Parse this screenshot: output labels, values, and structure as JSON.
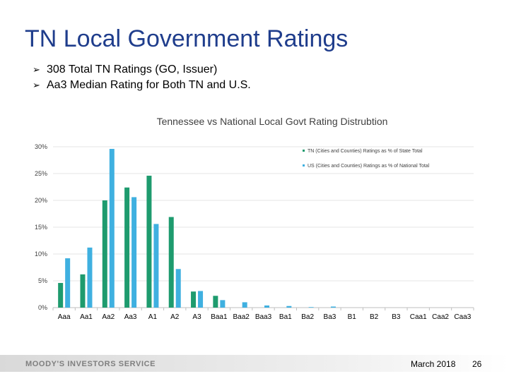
{
  "slide": {
    "title": "TN Local Government Ratings",
    "bullets": [
      "308 Total TN Ratings (GO, Issuer)",
      "Aa3 Median Rating for Both TN and U.S."
    ],
    "bullet_glyph": "➢"
  },
  "chart_data": {
    "type": "bar",
    "title": "Tennessee vs National Local Govt Rating Distrubtion",
    "categories": [
      "Aaa",
      "Aa1",
      "Aa2",
      "Aa3",
      "A1",
      "A2",
      "A3",
      "Baa1",
      "Baa2",
      "Baa3",
      "Ba1",
      "Ba2",
      "Ba3",
      "B1",
      "B2",
      "B3",
      "Caa1",
      "Caa2",
      "Caa3"
    ],
    "series": [
      {
        "name": "TN (Cities and Counties) Ratings as % of State Total",
        "color": "#1e9b6e",
        "values": [
          4.6,
          6.2,
          20.0,
          22.4,
          24.6,
          16.9,
          3.0,
          2.2,
          0.0,
          0.0,
          0.0,
          0.0,
          0.0,
          0.0,
          0.0,
          0.0,
          0.0,
          0.0,
          0.0
        ]
      },
      {
        "name": "US (Cities and Counties) Ratings as % of National Total",
        "color": "#3fb0e0",
        "values": [
          9.2,
          11.2,
          29.6,
          20.6,
          15.6,
          7.2,
          3.1,
          1.4,
          1.0,
          0.4,
          0.3,
          0.1,
          0.2,
          0.0,
          0.0,
          0.0,
          0.0,
          0.0,
          0.0
        ]
      }
    ],
    "yticks": [
      "0%",
      "5%",
      "10%",
      "15%",
      "20%",
      "25%",
      "30%"
    ],
    "ylim": [
      0,
      30
    ],
    "grid": true,
    "legend_position": "top-right"
  },
  "footer": {
    "logo_text": "MOODY'S INVESTORS SERVICE",
    "date": "March 2018",
    "page": "26"
  }
}
